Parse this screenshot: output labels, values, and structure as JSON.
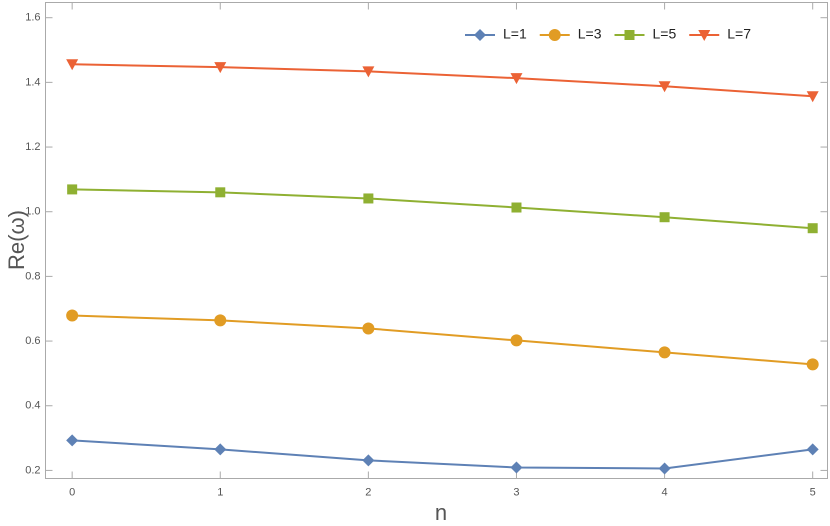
{
  "chart_data": {
    "type": "line",
    "xlabel": "n",
    "ylabel": "Re(ω)",
    "x": [
      0,
      1,
      2,
      3,
      4,
      5
    ],
    "series": [
      {
        "name": "L=1",
        "color": "#5e81b5",
        "marker": "diamond",
        "values": [
          0.293,
          0.265,
          0.231,
          0.209,
          0.206,
          0.265
        ]
      },
      {
        "name": "L=3",
        "color": "#e19c24",
        "marker": "circle",
        "values": [
          0.679,
          0.664,
          0.639,
          0.602,
          0.565,
          0.528
        ]
      },
      {
        "name": "L=5",
        "color": "#8fb032",
        "marker": "square",
        "values": [
          1.069,
          1.06,
          1.041,
          1.013,
          0.983,
          0.949
        ]
      },
      {
        "name": "L=7",
        "color": "#eb6235",
        "marker": "triangle-down",
        "values": [
          1.456,
          1.447,
          1.434,
          1.413,
          1.388,
          1.357
        ]
      }
    ],
    "xlim": [
      -0.18,
      5.1
    ],
    "ylim": [
      0.175,
      1.647
    ],
    "xticks": [
      0,
      1,
      2,
      3,
      4,
      5
    ],
    "yticks": [
      0.2,
      0.4,
      0.6,
      0.8,
      {
        "value": 1,
        "label": "1.0"
      },
      1.2,
      1.4,
      1.6
    ],
    "legend": "upper right"
  }
}
